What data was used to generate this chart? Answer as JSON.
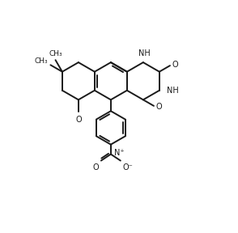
{
  "background_color": "#ffffff",
  "line_color": "#1a1a1a",
  "line_width": 1.4,
  "figsize": [
    2.94,
    2.88
  ],
  "dpi": 100,
  "xlim": [
    -0.5,
    6.0
  ],
  "ylim": [
    -3.2,
    4.0
  ]
}
